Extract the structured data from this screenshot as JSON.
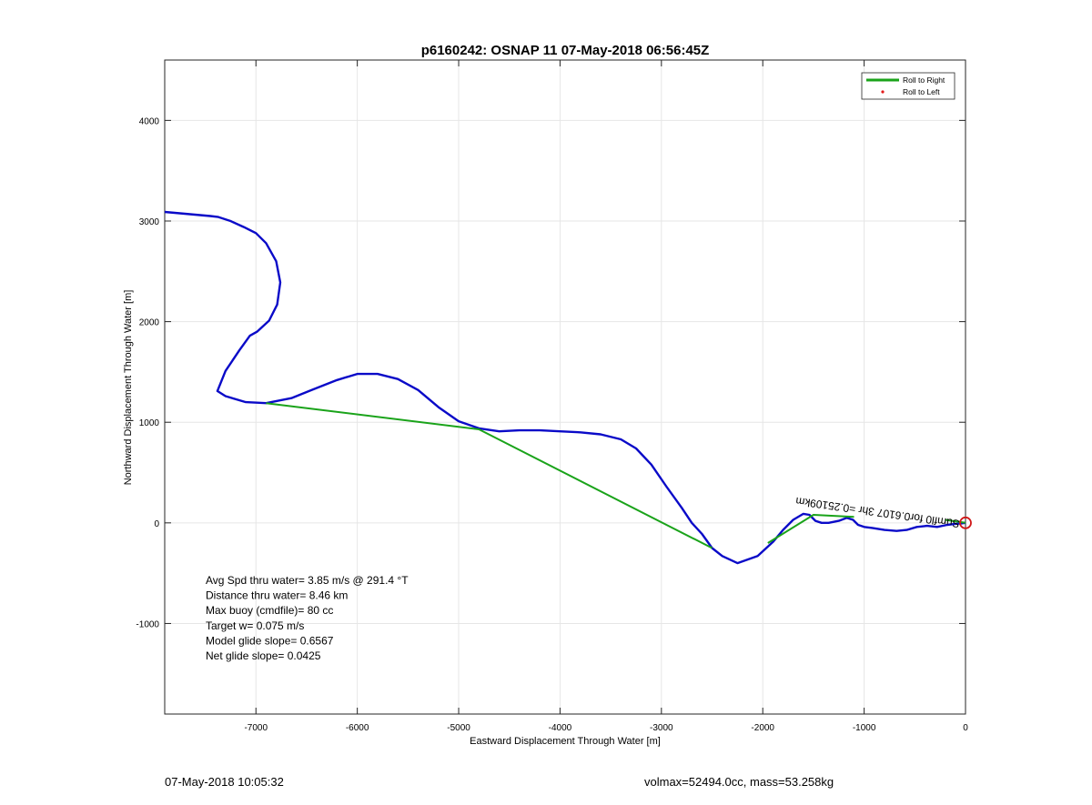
{
  "chart_data": {
    "type": "line",
    "title": "p6160242: OSNAP 11 07-May-2018 06:56:45Z",
    "xlabel": "Eastward Displacement Through Water [m]",
    "ylabel": "Northward Displacement Through Water [m]",
    "xlim": [
      -7900,
      0
    ],
    "ylim": [
      -1900,
      4600
    ],
    "xticks": [
      -7000,
      -6000,
      -5000,
      -4000,
      -3000,
      -2000,
      -1000,
      0
    ],
    "xtick_labels": [
      "-7000",
      "-6000",
      "-5000",
      "-4000",
      "-3000",
      "-2000",
      "-1000",
      "0"
    ],
    "yticks": [
      -1000,
      0,
      1000,
      2000,
      3000,
      4000
    ],
    "ytick_labels": [
      "-1000",
      "0",
      "1000",
      "2000",
      "3000",
      "4000"
    ],
    "grid": true,
    "legend": {
      "placement": "top-right",
      "entries": [
        {
          "label": "Roll to Right",
          "color": "#1aa31a",
          "marker": "line"
        },
        {
          "label": "Roll to Left",
          "color": "#e31a1a",
          "marker": "dot"
        }
      ]
    },
    "series": [
      {
        "color": "#0a0ac8",
        "x": [
          -7900,
          -7450,
          -7370,
          -7250,
          -7120,
          -7000,
          -6900,
          -6800,
          -6760,
          -6790,
          -6870,
          -6990,
          -7060,
          -7160,
          -7300,
          -7380,
          -7300,
          -7100,
          -6900,
          -6650,
          -6450,
          -6200,
          -6000,
          -5800,
          -5600,
          -5400,
          -5200,
          -5000,
          -4800,
          -4600,
          -4400,
          -4200,
          -4000,
          -3800,
          -3600,
          -3400,
          -3250,
          -3100,
          -2950,
          -2800,
          -2700,
          -2600,
          -2500,
          -2400,
          -2250,
          -2050,
          -1900,
          -1800,
          -1700,
          -1600,
          -1540,
          -1480,
          -1420,
          -1350,
          -1250,
          -1170,
          -1110,
          -1060,
          -1000,
          -920,
          -800,
          -680,
          -580,
          -480,
          -380,
          -280,
          -180,
          -100,
          -40,
          0
        ],
        "y": [
          3090,
          3050,
          3040,
          3000,
          2940,
          2880,
          2780,
          2600,
          2390,
          2170,
          2010,
          1900,
          1860,
          1720,
          1510,
          1310,
          1260,
          1200,
          1190,
          1240,
          1320,
          1420,
          1480,
          1480,
          1430,
          1320,
          1150,
          1010,
          940,
          910,
          920,
          920,
          910,
          900,
          880,
          830,
          740,
          580,
          360,
          150,
          0,
          -110,
          -250,
          -330,
          -400,
          -330,
          -190,
          -70,
          30,
          90,
          80,
          20,
          0,
          0,
          20,
          50,
          30,
          -20,
          -40,
          -50,
          -70,
          -80,
          -70,
          -40,
          -30,
          -40,
          -20,
          -10,
          -5,
          0
        ]
      },
      {
        "name": "Roll to Right",
        "color": "#1aa31a",
        "segments": [
          {
            "x": [
              -6900,
              -4800,
              -2500
            ],
            "y": [
              1190,
              930,
              -250
            ]
          },
          {
            "x": [
              -1950,
              -1500,
              -1100
            ],
            "y": [
              -200,
              80,
              60
            ]
          },
          {
            "x": [
              -200,
              0
            ],
            "y": [
              30,
              0
            ]
          }
        ]
      }
    ],
    "annotations": {
      "rotated_label": "Sumfl0 for0.6107 3hr =0.25109km",
      "stats_lines": [
        "Avg Spd thru water=  3.85 m/s @ 291.4 °T",
        "Distance thru water=  8.46 km",
        "Max buoy (cmdfile)= 80 cc",
        "Target w= 0.075 m/s",
        "Model glide slope= 0.6567",
        "Net glide slope= 0.0425"
      ],
      "end_marker": {
        "x": 0,
        "y": 0,
        "color": "#d01818"
      }
    }
  },
  "footer": {
    "timestamp": "07-May-2018 10:05:32",
    "volmax": "volmax=52494.0cc, mass=53.258kg"
  }
}
